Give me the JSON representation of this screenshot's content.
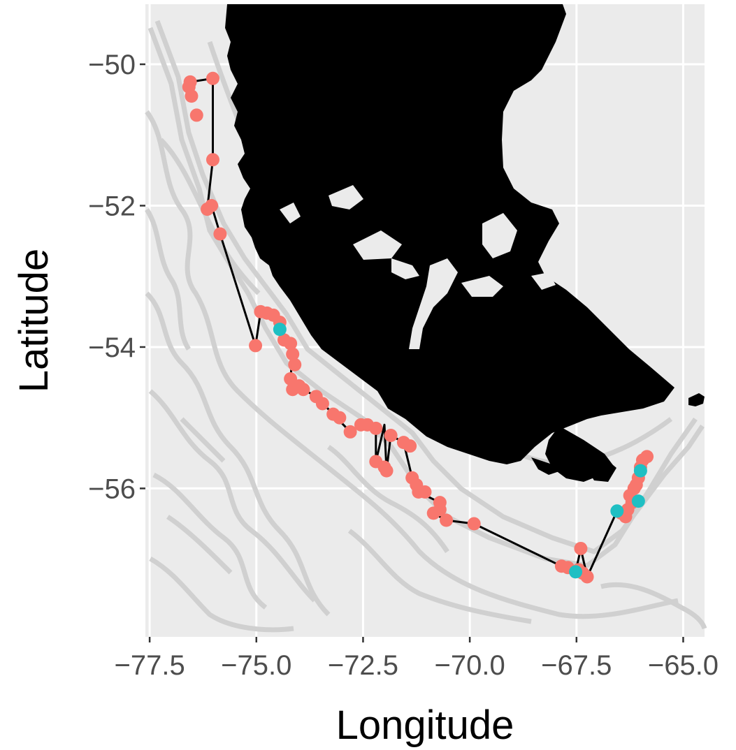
{
  "chart_data": {
    "type": "scatter",
    "xlabel": "Longitude",
    "ylabel": "Latitude",
    "xlim": [
      -77.6,
      -64.5
    ],
    "ylim": [
      -58.1,
      -49.15
    ],
    "x_ticks": [
      -77.5,
      -75.0,
      -72.5,
      -70.0,
      -67.5,
      -65.0
    ],
    "x_tick_labels": [
      "−77.5",
      "−75.0",
      "−72.5",
      "−70.0",
      "−67.5",
      "−65.0"
    ],
    "y_ticks": [
      -50,
      -52,
      -54,
      -56
    ],
    "y_tick_labels": [
      "−50",
      "−52",
      "−54",
      "−56"
    ],
    "grid": true,
    "legend": "none",
    "colors": {
      "panel": "#ebebeb",
      "grid": "#ffffff",
      "land": "#000000",
      "bathymetry": "#d0d0d0",
      "track": "#000000",
      "series_a": "#f8766d",
      "series_b": "#1fbfc3"
    },
    "series": [
      {
        "color": "#f8766d",
        "points": [
          [
            -76.55,
            -50.25
          ],
          [
            -76.58,
            -50.32
          ],
          [
            -76.52,
            -50.45
          ],
          [
            -76.4,
            -50.72
          ],
          [
            -76.02,
            -50.2
          ],
          [
            -76.02,
            -51.35
          ],
          [
            -76.15,
            -52.05
          ],
          [
            -76.05,
            -52.0
          ],
          [
            -75.85,
            -52.4
          ],
          [
            -75.02,
            -53.98
          ],
          [
            -74.9,
            -53.5
          ],
          [
            -74.75,
            -53.52
          ],
          [
            -74.6,
            -53.55
          ],
          [
            -74.45,
            -53.65
          ],
          [
            -74.35,
            -53.9
          ],
          [
            -74.2,
            -53.95
          ],
          [
            -74.15,
            -54.1
          ],
          [
            -74.1,
            -54.25
          ],
          [
            -74.2,
            -54.45
          ],
          [
            -74.15,
            -54.6
          ],
          [
            -74.0,
            -54.55
          ],
          [
            -73.9,
            -54.6
          ],
          [
            -73.6,
            -54.7
          ],
          [
            -73.45,
            -54.8
          ],
          [
            -73.2,
            -54.95
          ],
          [
            -73.05,
            -55.0
          ],
          [
            -72.8,
            -55.2
          ],
          [
            -72.55,
            -55.1
          ],
          [
            -72.4,
            -55.1
          ],
          [
            -72.2,
            -55.15
          ],
          [
            -72.2,
            -55.62
          ],
          [
            -72.0,
            -55.7
          ],
          [
            -71.95,
            -55.75
          ],
          [
            -71.85,
            -55.25
          ],
          [
            -71.55,
            -55.35
          ],
          [
            -71.4,
            -55.4
          ],
          [
            -71.35,
            -55.85
          ],
          [
            -71.25,
            -55.95
          ],
          [
            -71.2,
            -56.05
          ],
          [
            -71.05,
            -56.05
          ],
          [
            -70.7,
            -56.2
          ],
          [
            -70.7,
            -56.3
          ],
          [
            -70.85,
            -56.35
          ],
          [
            -70.55,
            -56.45
          ],
          [
            -69.9,
            -56.5
          ],
          [
            -67.85,
            -57.1
          ],
          [
            -67.7,
            -57.12
          ],
          [
            -67.4,
            -56.85
          ],
          [
            -67.45,
            -57.15
          ],
          [
            -67.35,
            -57.2
          ],
          [
            -67.25,
            -57.25
          ],
          [
            -66.45,
            -56.35
          ],
          [
            -66.35,
            -56.4
          ],
          [
            -66.3,
            -56.3
          ],
          [
            -66.2,
            -56.2
          ],
          [
            -66.25,
            -56.1
          ],
          [
            -66.15,
            -56.0
          ],
          [
            -66.1,
            -55.95
          ],
          [
            -66.05,
            -55.85
          ],
          [
            -66.0,
            -55.7
          ],
          [
            -65.95,
            -55.6
          ],
          [
            -65.85,
            -55.55
          ]
        ]
      },
      {
        "color": "#1fbfc3",
        "points": [
          [
            -74.45,
            -53.75
          ],
          [
            -67.52,
            -57.18
          ],
          [
            -66.55,
            -56.32
          ],
          [
            -66.05,
            -56.18
          ],
          [
            -66.0,
            -55.75
          ]
        ]
      }
    ],
    "track": [
      [
        -76.55,
        -50.25
      ],
      [
        -76.02,
        -50.2
      ],
      [
        -76.02,
        -51.35
      ],
      [
        -76.15,
        -52.05
      ],
      [
        -76.05,
        -52.0
      ],
      [
        -75.85,
        -52.4
      ],
      [
        -75.02,
        -53.98
      ],
      [
        -74.9,
        -53.5
      ],
      [
        -74.6,
        -53.55
      ],
      [
        -74.45,
        -53.75
      ],
      [
        -74.35,
        -53.9
      ],
      [
        -74.15,
        -54.1
      ],
      [
        -74.2,
        -54.45
      ],
      [
        -73.9,
        -54.6
      ],
      [
        -73.6,
        -54.7
      ],
      [
        -73.2,
        -54.95
      ],
      [
        -72.8,
        -55.2
      ],
      [
        -72.55,
        -55.1
      ],
      [
        -72.2,
        -55.15
      ],
      [
        -72.2,
        -55.62
      ],
      [
        -72.0,
        -55.1
      ],
      [
        -71.95,
        -55.75
      ],
      [
        -71.85,
        -55.25
      ],
      [
        -71.55,
        -55.35
      ],
      [
        -71.35,
        -55.85
      ],
      [
        -71.2,
        -56.05
      ],
      [
        -70.7,
        -56.2
      ],
      [
        -70.85,
        -56.35
      ],
      [
        -70.55,
        -56.45
      ],
      [
        -69.9,
        -56.5
      ],
      [
        -67.85,
        -57.1
      ],
      [
        -67.52,
        -57.18
      ],
      [
        -67.4,
        -56.85
      ],
      [
        -67.25,
        -57.25
      ],
      [
        -66.55,
        -56.32
      ],
      [
        -66.2,
        -56.2
      ],
      [
        -66.1,
        -55.95
      ],
      [
        -65.95,
        -55.6
      ],
      [
        -65.85,
        -55.55
      ]
    ]
  }
}
